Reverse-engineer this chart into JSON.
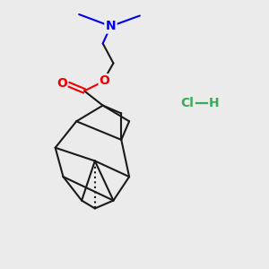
{
  "bg_color": "#ebebeb",
  "bond_color": "#1a1a1a",
  "N_color": "#0000ee",
  "O_color": "#ee0000",
  "Cl_color": "#3aaa5a",
  "line_width": 1.5,
  "figsize": [
    3.0,
    3.0
  ],
  "dpi": 100,
  "N_label": "N",
  "O_label": "O",
  "carbonyl_O_label": "O",
  "HCl_text": "Cl",
  "H_text": "H"
}
